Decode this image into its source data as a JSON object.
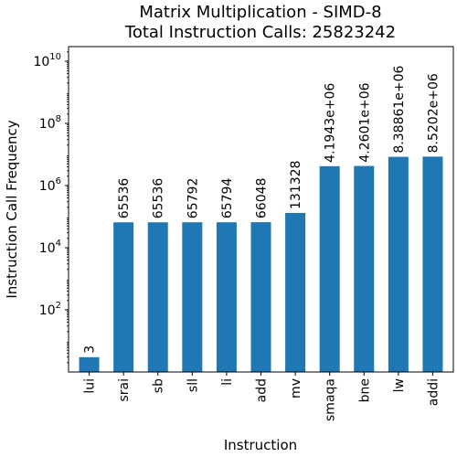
{
  "chart_data": {
    "type": "bar",
    "title": "Matrix Multiplication - SIMD-8",
    "subtitle": "Total Instruction Calls: 25823242",
    "xlabel": "Instruction",
    "ylabel": "Instruction Call Frequency",
    "yscale": "log",
    "ylim": [
      1,
      100000000000
    ],
    "yticks": [
      {
        "base": "10",
        "exp": "2"
      },
      {
        "base": "10",
        "exp": "4"
      },
      {
        "base": "10",
        "exp": "6"
      },
      {
        "base": "10",
        "exp": "8"
      },
      {
        "base": "10",
        "exp": "10"
      }
    ],
    "categories": [
      "lui",
      "srai",
      "sb",
      "sll",
      "li",
      "add",
      "mv",
      "smaqa",
      "bne",
      "lw",
      "addi"
    ],
    "values": [
      3,
      65536,
      65536,
      65792,
      65794,
      66048,
      131328,
      4194300,
      4260100,
      8388610,
      8520200
    ],
    "data_labels": [
      "3",
      "65536",
      "65536",
      "65792",
      "65794",
      "66048",
      "131328",
      "4.1943e+06",
      "4.2601e+06",
      "8.38861e+06",
      "8.5202e+06"
    ],
    "bar_color": "#1f77b4",
    "grid": false,
    "legend": "none"
  }
}
